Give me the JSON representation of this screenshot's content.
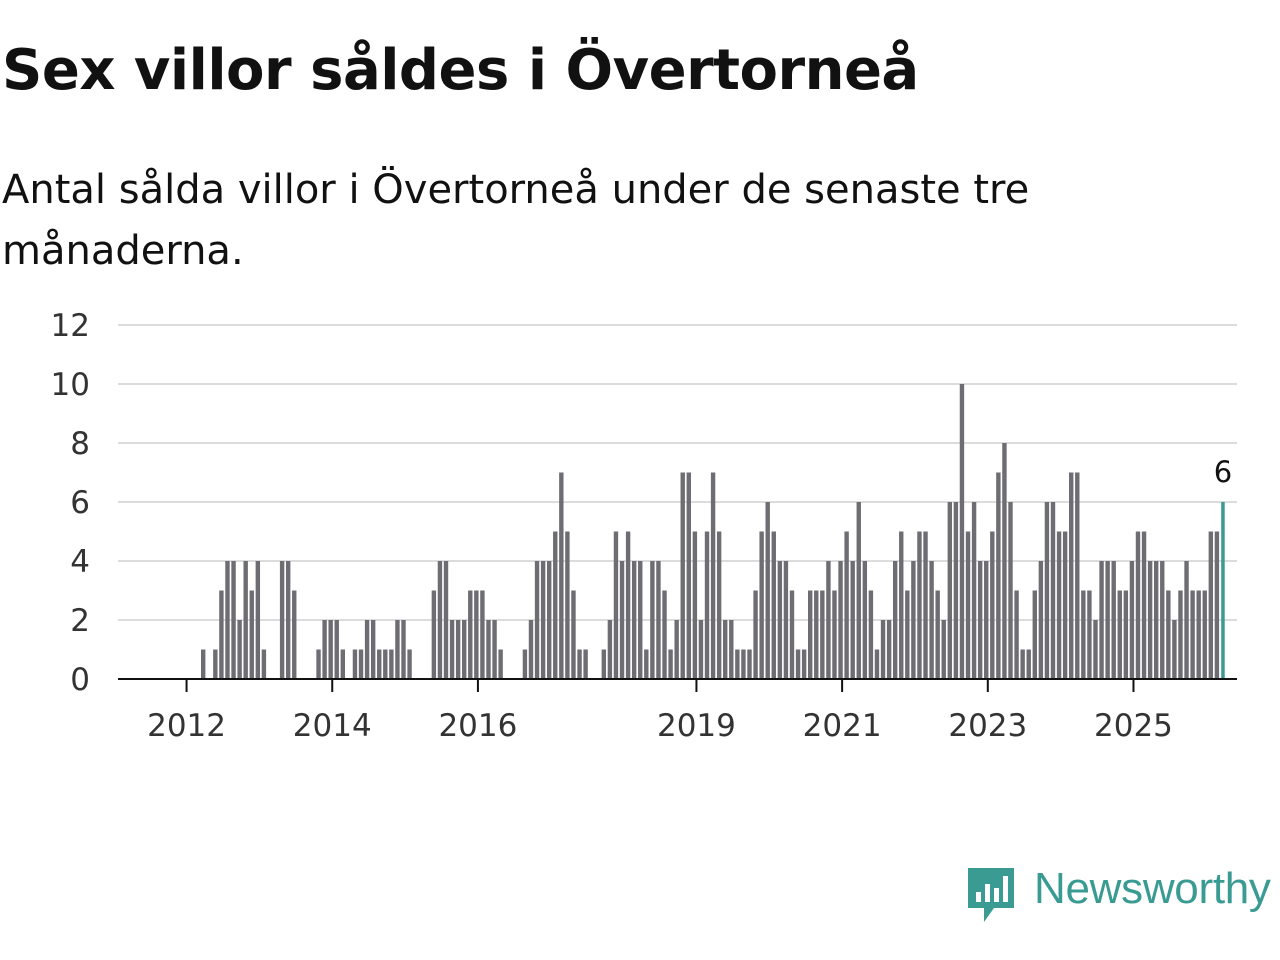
{
  "title": "Sex villor såldes i Övertorneå",
  "subtitle": "Antal sålda villor i Övertorneå under de senaste tre månaderna.",
  "brand": {
    "name": "Newsworthy",
    "color": "#3a9b93"
  },
  "chart_data": {
    "type": "bar",
    "title": "Sex villor såldes i Övertorneå",
    "subtitle": "Antal sålda villor i Övertorneå under de senaste tre månaderna.",
    "xlabel": "",
    "ylabel": "",
    "ylim": [
      0,
      12
    ],
    "yticks": [
      "0",
      "2",
      "4",
      "6",
      "8",
      "10",
      "12"
    ],
    "grid": true,
    "x_tick_labels": [
      {
        "label": "2012",
        "index": 8
      },
      {
        "label": "2014",
        "index": 32
      },
      {
        "label": "2016",
        "index": 56
      },
      {
        "label": "2019",
        "index": 92
      },
      {
        "label": "2021",
        "index": 116
      },
      {
        "label": "2023",
        "index": 140
      },
      {
        "label": "2025",
        "index": 164
      }
    ],
    "bar_color": "#6e6d73",
    "highlight_color": "#3a9b93",
    "highlight_label": "6",
    "values": [
      0,
      0,
      0,
      0,
      0,
      0,
      0,
      0,
      0,
      0,
      1,
      0,
      1,
      3,
      4,
      4,
      2,
      4,
      3,
      4,
      1,
      0,
      0,
      4,
      4,
      3,
      0,
      0,
      0,
      1,
      2,
      2,
      2,
      1,
      0,
      1,
      1,
      2,
      2,
      1,
      1,
      1,
      2,
      2,
      1,
      0,
      0,
      0,
      3,
      4,
      4,
      2,
      2,
      2,
      3,
      3,
      3,
      2,
      2,
      1,
      0,
      0,
      0,
      1,
      2,
      4,
      4,
      4,
      5,
      7,
      5,
      3,
      1,
      1,
      0,
      0,
      1,
      2,
      5,
      4,
      5,
      4,
      4,
      1,
      4,
      4,
      3,
      1,
      2,
      7,
      7,
      5,
      2,
      5,
      7,
      5,
      2,
      2,
      1,
      1,
      1,
      3,
      5,
      6,
      5,
      4,
      4,
      3,
      1,
      1,
      3,
      3,
      3,
      4,
      3,
      4,
      5,
      4,
      6,
      4,
      3,
      1,
      2,
      2,
      4,
      5,
      3,
      4,
      5,
      5,
      4,
      3,
      2,
      6,
      6,
      10,
      5,
      6,
      4,
      4,
      5,
      7,
      8,
      6,
      3,
      1,
      1,
      3,
      4,
      6,
      6,
      5,
      5,
      7,
      7,
      3,
      3,
      2,
      4,
      4,
      4,
      3,
      3,
      4,
      5,
      5,
      4,
      4,
      4,
      3,
      2,
      3,
      4,
      3,
      3,
      3,
      5,
      5,
      6
    ]
  }
}
